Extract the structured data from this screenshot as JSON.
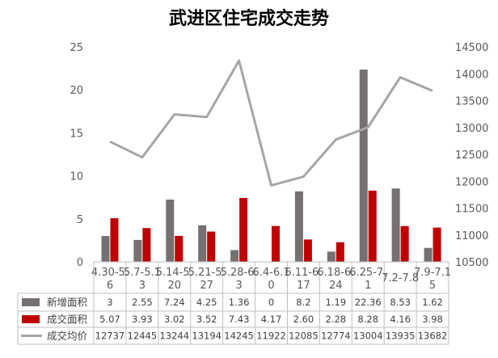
{
  "chart_data": {
    "type": "bar",
    "title": "武进区住宅成交走势",
    "categories": [
      [
        "4.30-5.",
        "6"
      ],
      [
        "5.7-5.1",
        "3"
      ],
      [
        "5.14-5.",
        "20"
      ],
      [
        "5.21-5.",
        "27"
      ],
      [
        "5.28-6.",
        "3"
      ],
      [
        "6.4-6.1",
        "0"
      ],
      [
        "6.11-6.",
        "17"
      ],
      [
        "6.18-6.",
        "24"
      ],
      [
        "6.25-7.",
        "1"
      ],
      [
        "7.2-7.8",
        ""
      ],
      [
        "7.9-7.1",
        "5"
      ]
    ],
    "ylim_left": [
      0,
      25
    ],
    "yticks_left": [
      "0",
      "5",
      "10",
      "15",
      "20",
      "25"
    ],
    "ylim_right": [
      10500,
      14500
    ],
    "yticks_right": [
      "10500",
      "11000",
      "11500",
      "12000",
      "12500",
      "13000",
      "13500",
      "14000",
      "14500"
    ],
    "series": [
      {
        "name": "新增面积",
        "type": "bar",
        "axis": "left",
        "color": "#767171",
        "values": [
          3,
          2.55,
          7.24,
          4.25,
          1.36,
          0,
          8.2,
          1.19,
          22.36,
          8.53,
          1.62
        ],
        "labels": [
          "3",
          "2.55",
          "7.24",
          "4.25",
          "1.36",
          "0",
          "8.2",
          "1.19",
          "22.36",
          "8.53",
          "1.62"
        ]
      },
      {
        "name": "成交面积",
        "type": "bar",
        "axis": "left",
        "color": "#c00000",
        "values": [
          5.07,
          3.93,
          3.02,
          3.52,
          7.43,
          4.17,
          2.6,
          2.28,
          8.28,
          4.16,
          3.98
        ],
        "labels": [
          "5.07",
          "3.93",
          "3.02",
          "3.52",
          "7.43",
          "4.17",
          "2.60",
          "2.28",
          "8.28",
          "4.16",
          "3.98"
        ]
      },
      {
        "name": "成交均价",
        "type": "line",
        "axis": "right",
        "color": "#a6a6a6",
        "values": [
          12737,
          12445,
          13244,
          13194,
          14245,
          11922,
          12085,
          12774,
          13004,
          13935,
          13682
        ],
        "labels": [
          "12737",
          "12445",
          "13244",
          "13194",
          "14245",
          "11922",
          "12085",
          "12774",
          "13004",
          "13935",
          "13682"
        ]
      }
    ]
  }
}
